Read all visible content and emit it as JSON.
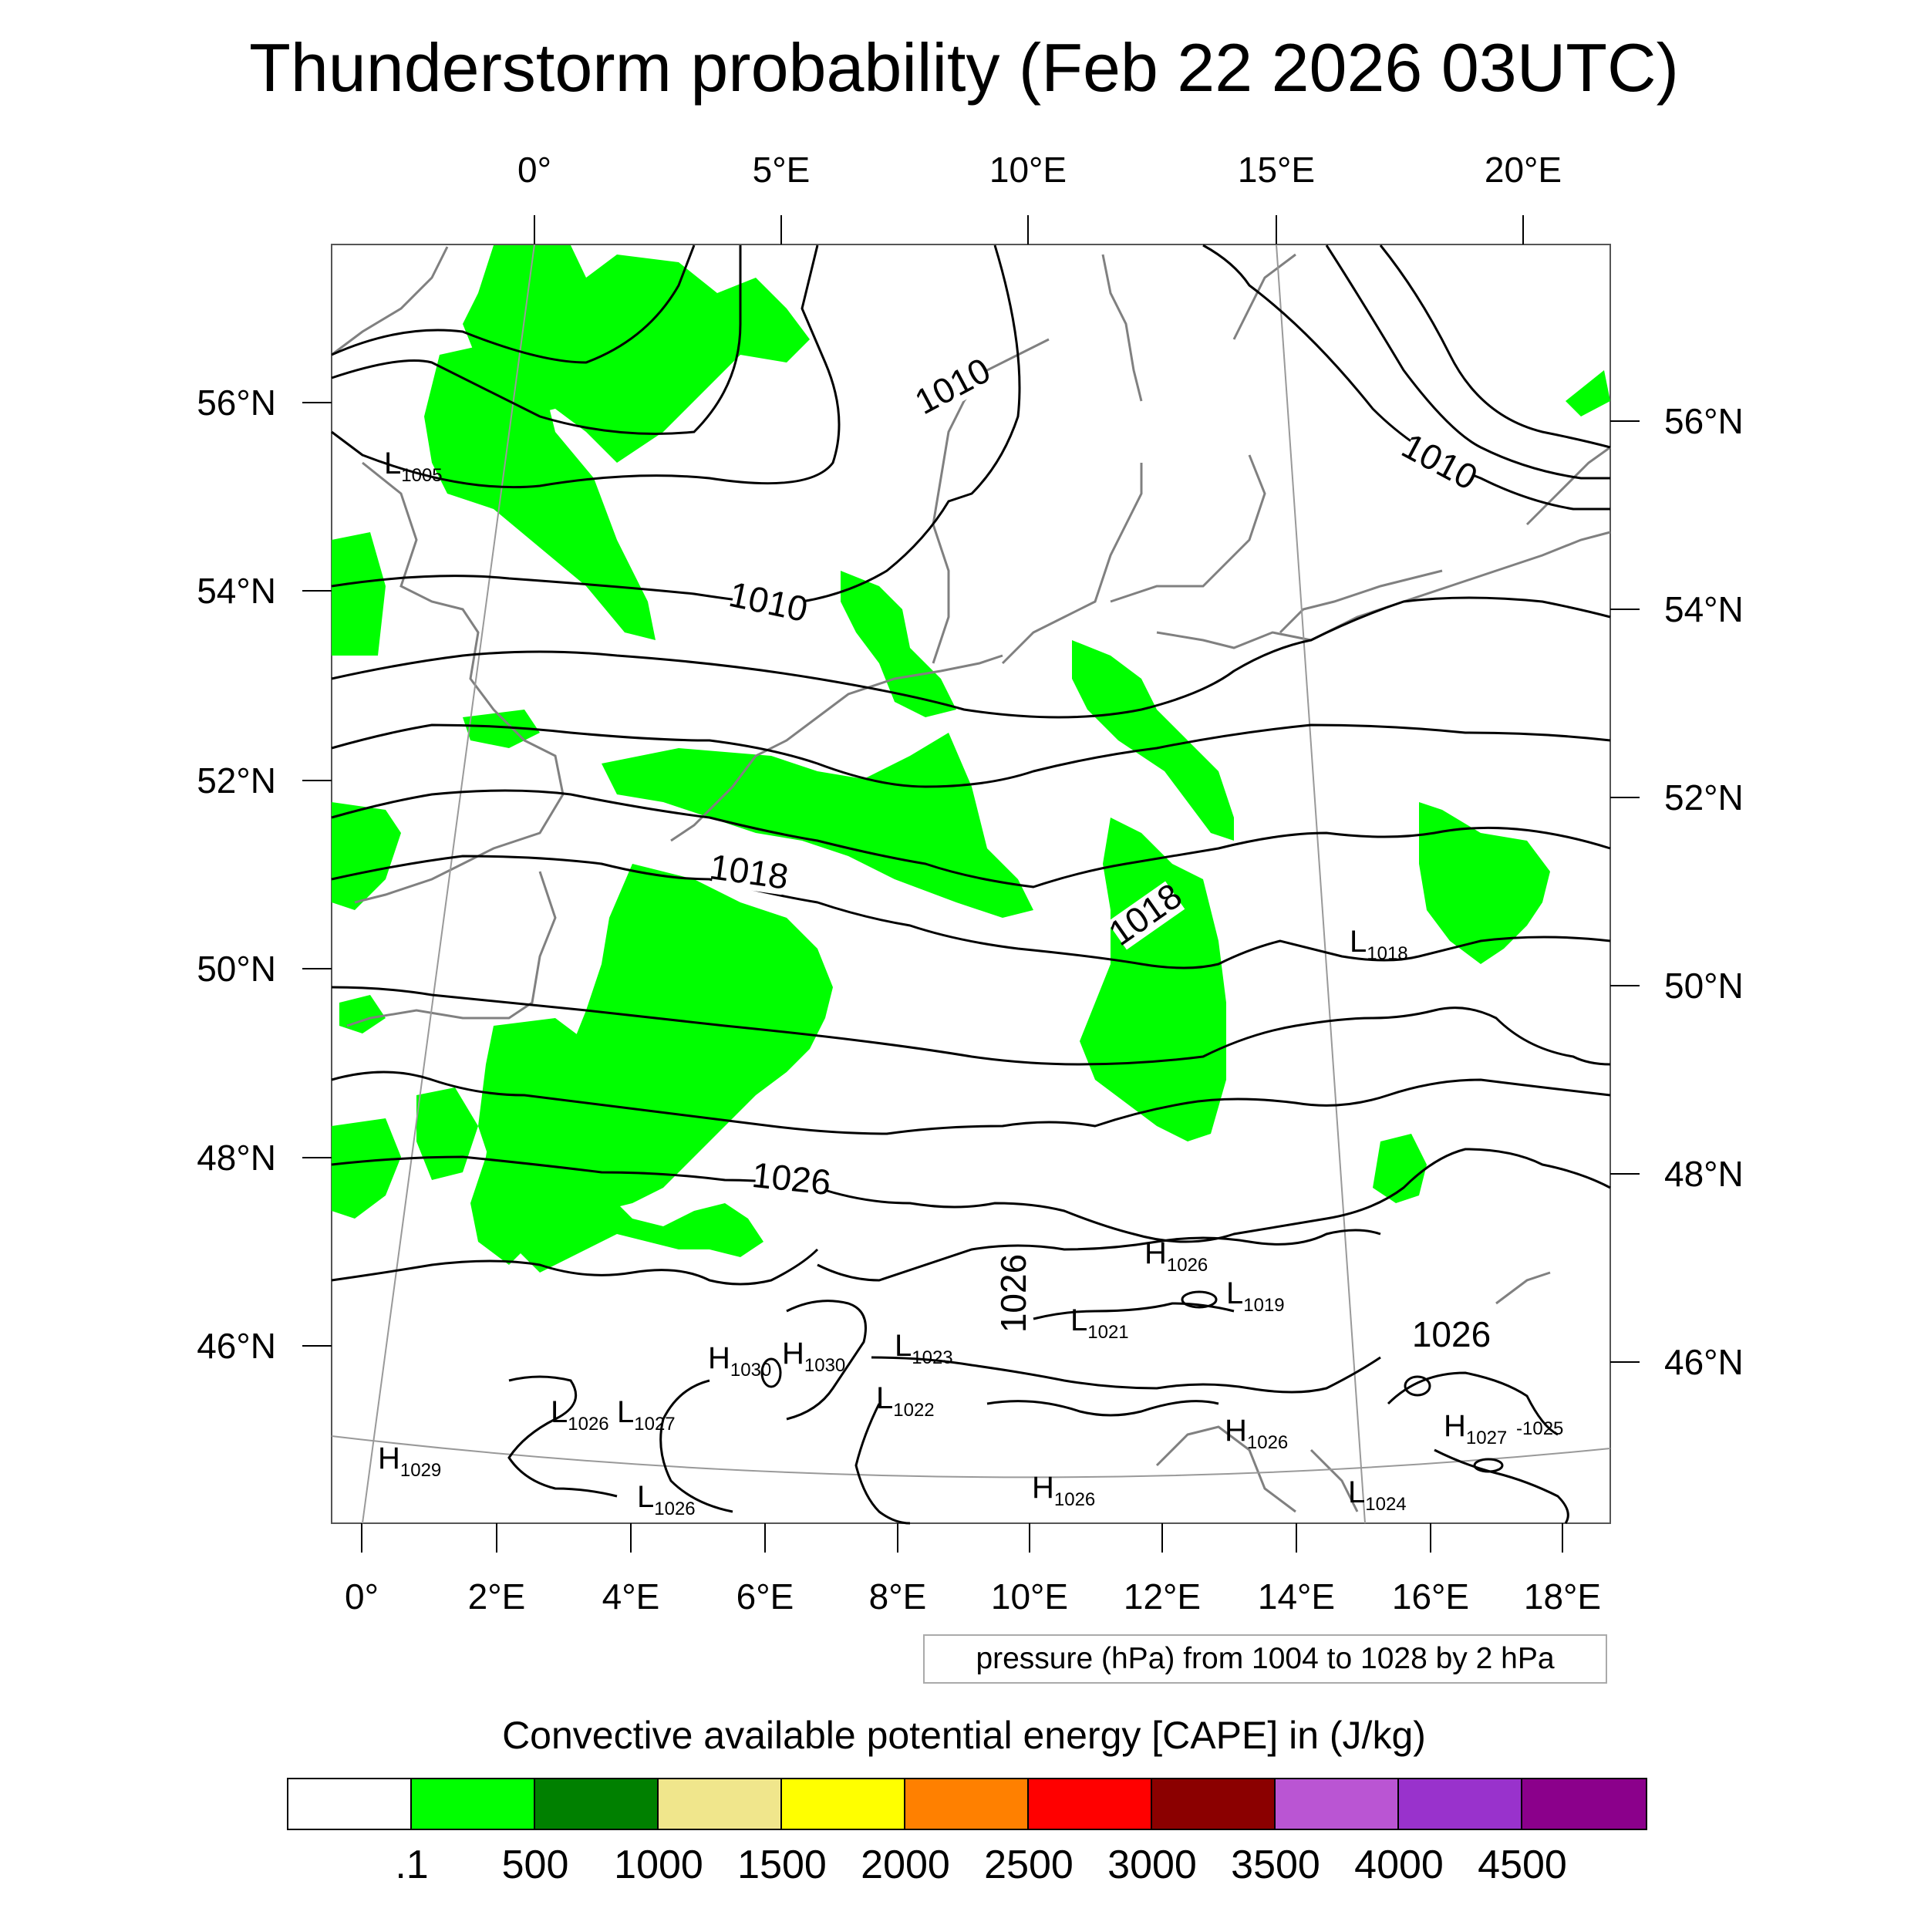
{
  "title": "Thunderstorm probability (Feb 22 2026 03UTC)",
  "top_lon_labels": [
    "0°",
    "5°E",
    "10°E",
    "15°E",
    "20°E"
  ],
  "bottom_lon_labels": [
    "0°",
    "2°E",
    "4°E",
    "6°E",
    "8°E",
    "10°E",
    "12°E",
    "14°E",
    "16°E",
    "18°E"
  ],
  "left_lat_labels": [
    "56°N",
    "54°N",
    "52°N",
    "50°N",
    "48°N",
    "46°N"
  ],
  "right_lat_labels": [
    "56°N",
    "54°N",
    "52°N",
    "50°N",
    "48°N",
    "46°N"
  ],
  "isobar_labels": [
    "1010",
    "1010",
    "1010",
    "1018",
    "1018",
    "1026",
    "1026",
    "1026"
  ],
  "pressure_centers": [
    {
      "kind": "L",
      "value": "1005"
    },
    {
      "kind": "L",
      "value": "1018"
    },
    {
      "kind": "H",
      "value": "1026"
    },
    {
      "kind": "L",
      "value": "1019"
    },
    {
      "kind": "L",
      "value": "1021"
    },
    {
      "kind": "L",
      "value": "1023"
    },
    {
      "kind": "H",
      "value": "1030"
    },
    {
      "kind": "H",
      "value": "1030"
    },
    {
      "kind": "L",
      "value": "1022"
    },
    {
      "kind": "L",
      "value": "1026"
    },
    {
      "kind": "L",
      "value": "1027"
    },
    {
      "kind": "H",
      "value": "1029"
    },
    {
      "kind": "L",
      "value": "1026"
    },
    {
      "kind": "H",
      "value": "1026"
    },
    {
      "kind": "H",
      "value": "1026"
    },
    {
      "kind": "L",
      "value": "1024"
    },
    {
      "kind": "H",
      "value": "1027"
    },
    {
      "kind": "",
      "value": "-1025"
    }
  ],
  "contour_info": "pressure (hPa) from 1004 to 1028 by 2 hPa",
  "colorbar": {
    "title": "Convective available potential energy [CAPE] in (J/kg)",
    "colors": [
      "#ffffff",
      "#00ff00",
      "#008000",
      "#f0e68c",
      "#ffff00",
      "#ff8000",
      "#ff0000",
      "#8b0000",
      "#ba55d3",
      "#9932cc",
      "#8b008b"
    ],
    "labels": [
      ".1",
      "500",
      "1000",
      "1500",
      "2000",
      "2500",
      "3000",
      "3500",
      "4000",
      "4500"
    ]
  },
  "colors": {
    "cape_fill": "#00ff00",
    "coastline": "#808080",
    "isobar": "#000000",
    "grid": "#999999"
  }
}
